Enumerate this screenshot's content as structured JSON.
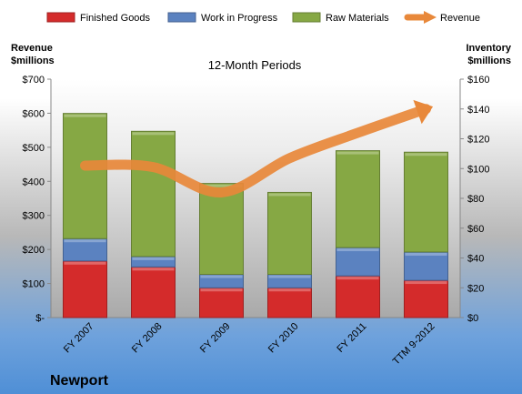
{
  "chart_data": {
    "type": "bar",
    "stacked": true,
    "subtitle": "12-Month Periods",
    "company": "Newport",
    "categories": [
      "FY 2007",
      "FY 2008",
      "FY 2009",
      "FY 2010",
      "FY 2011",
      "TTM 9-2012"
    ],
    "left_axis": {
      "title_line1": "Revenue",
      "title_line2": "$millions",
      "ylim": [
        0,
        700
      ],
      "ticks": [
        {
          "value": 0,
          "label": "$-"
        },
        {
          "value": 100,
          "label": "$100"
        },
        {
          "value": 200,
          "label": "$200"
        },
        {
          "value": 300,
          "label": "$300"
        },
        {
          "value": 400,
          "label": "$400"
        },
        {
          "value": 500,
          "label": "$500"
        },
        {
          "value": 600,
          "label": "$600"
        },
        {
          "value": 700,
          "label": "$700"
        }
      ]
    },
    "right_axis": {
      "title_line1": "Inventory",
      "title_line2": "$millions",
      "ylim": [
        0,
        160
      ],
      "ticks": [
        {
          "value": 0,
          "label": "$0"
        },
        {
          "value": 20,
          "label": "$20"
        },
        {
          "value": 40,
          "label": "$40"
        },
        {
          "value": 60,
          "label": "$60"
        },
        {
          "value": 80,
          "label": "$80"
        },
        {
          "value": 100,
          "label": "$100"
        },
        {
          "value": 120,
          "label": "$120"
        },
        {
          "value": 140,
          "label": "$140"
        },
        {
          "value": 160,
          "label": "$160"
        }
      ]
    },
    "bar_series": [
      {
        "name": "Finished Goods",
        "axis": "right",
        "color": "#d42b2b",
        "values": [
          38,
          34,
          20,
          20,
          28,
          25
        ]
      },
      {
        "name": "Work in Progress",
        "axis": "right",
        "color": "#5b82c0",
        "values": [
          15,
          7,
          9,
          9,
          19,
          19
        ]
      },
      {
        "name": "Raw Materials",
        "axis": "right",
        "color": "#86a844",
        "values": [
          84,
          84,
          61,
          55,
          65,
          67
        ]
      }
    ],
    "line_series": {
      "name": "Revenue",
      "axis": "right",
      "color": "#e8883a",
      "values": [
        102,
        101,
        84,
        107,
        124,
        140
      ]
    },
    "grid": false,
    "legend": "top"
  }
}
